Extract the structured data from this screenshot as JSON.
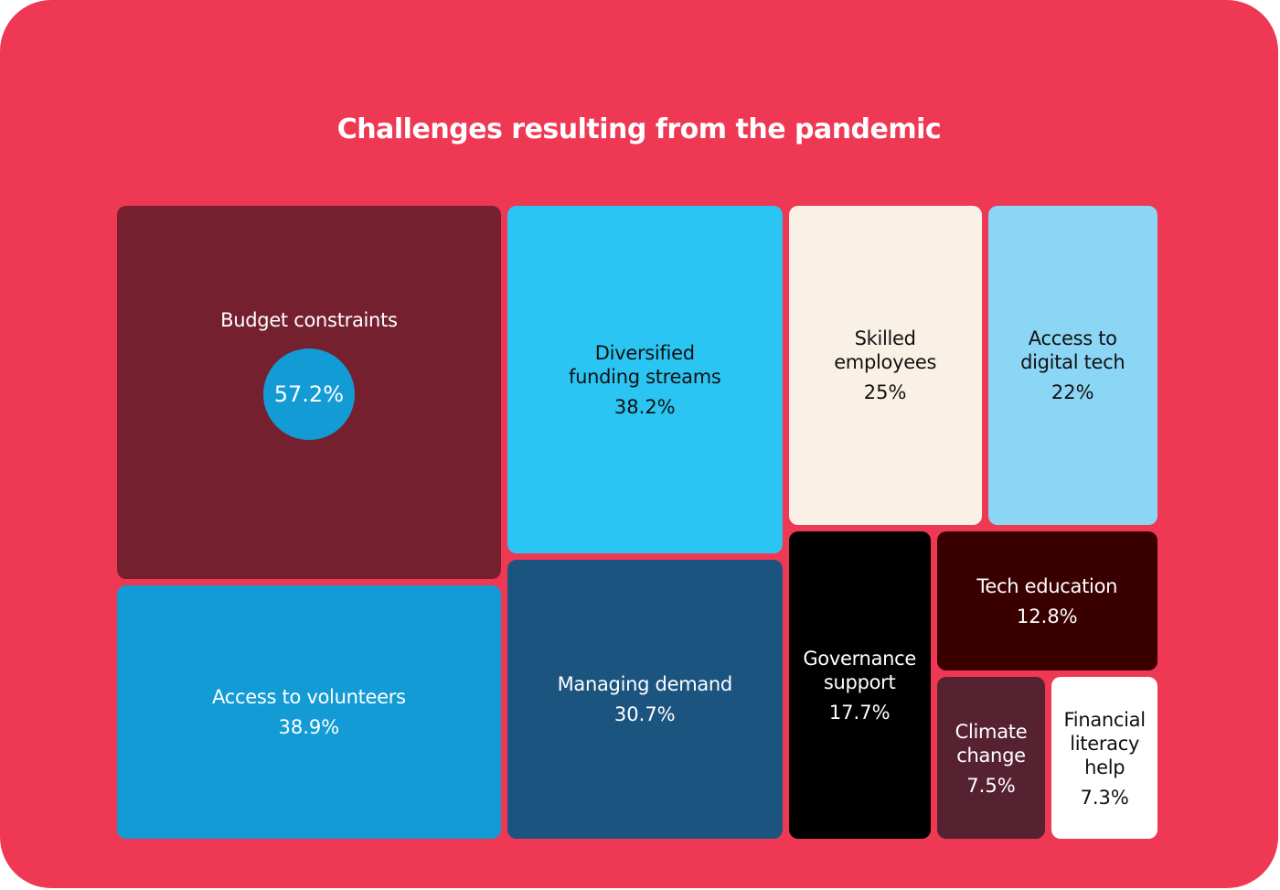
{
  "chart_data": {
    "type": "treemap",
    "title": "Challenges resulting from the pandemic",
    "categories": [
      "Budget constraints",
      "Access to volunteers",
      "Diversified funding streams",
      "Managing demand",
      "Skilled employees",
      "Access to digital tech",
      "Governance support",
      "Tech education",
      "Climate change",
      "Financial literacy help"
    ],
    "values": [
      57.2,
      38.9,
      38.2,
      30.7,
      25,
      22,
      17.7,
      12.8,
      7.5,
      7.3
    ],
    "value_labels": [
      "57.2%",
      "38.9%",
      "38.2%",
      "30.7%",
      "25%",
      "22%",
      "17.7%",
      "12.8%",
      "7.5%",
      "7.3%"
    ],
    "colors": [
      "#74202f",
      "#139bd6",
      "#2bc5f3",
      "#1c5480",
      "#faf1e6",
      "#8bd5f5",
      "#000000",
      "#3a0000",
      "#562232",
      "#ffffff"
    ]
  }
}
